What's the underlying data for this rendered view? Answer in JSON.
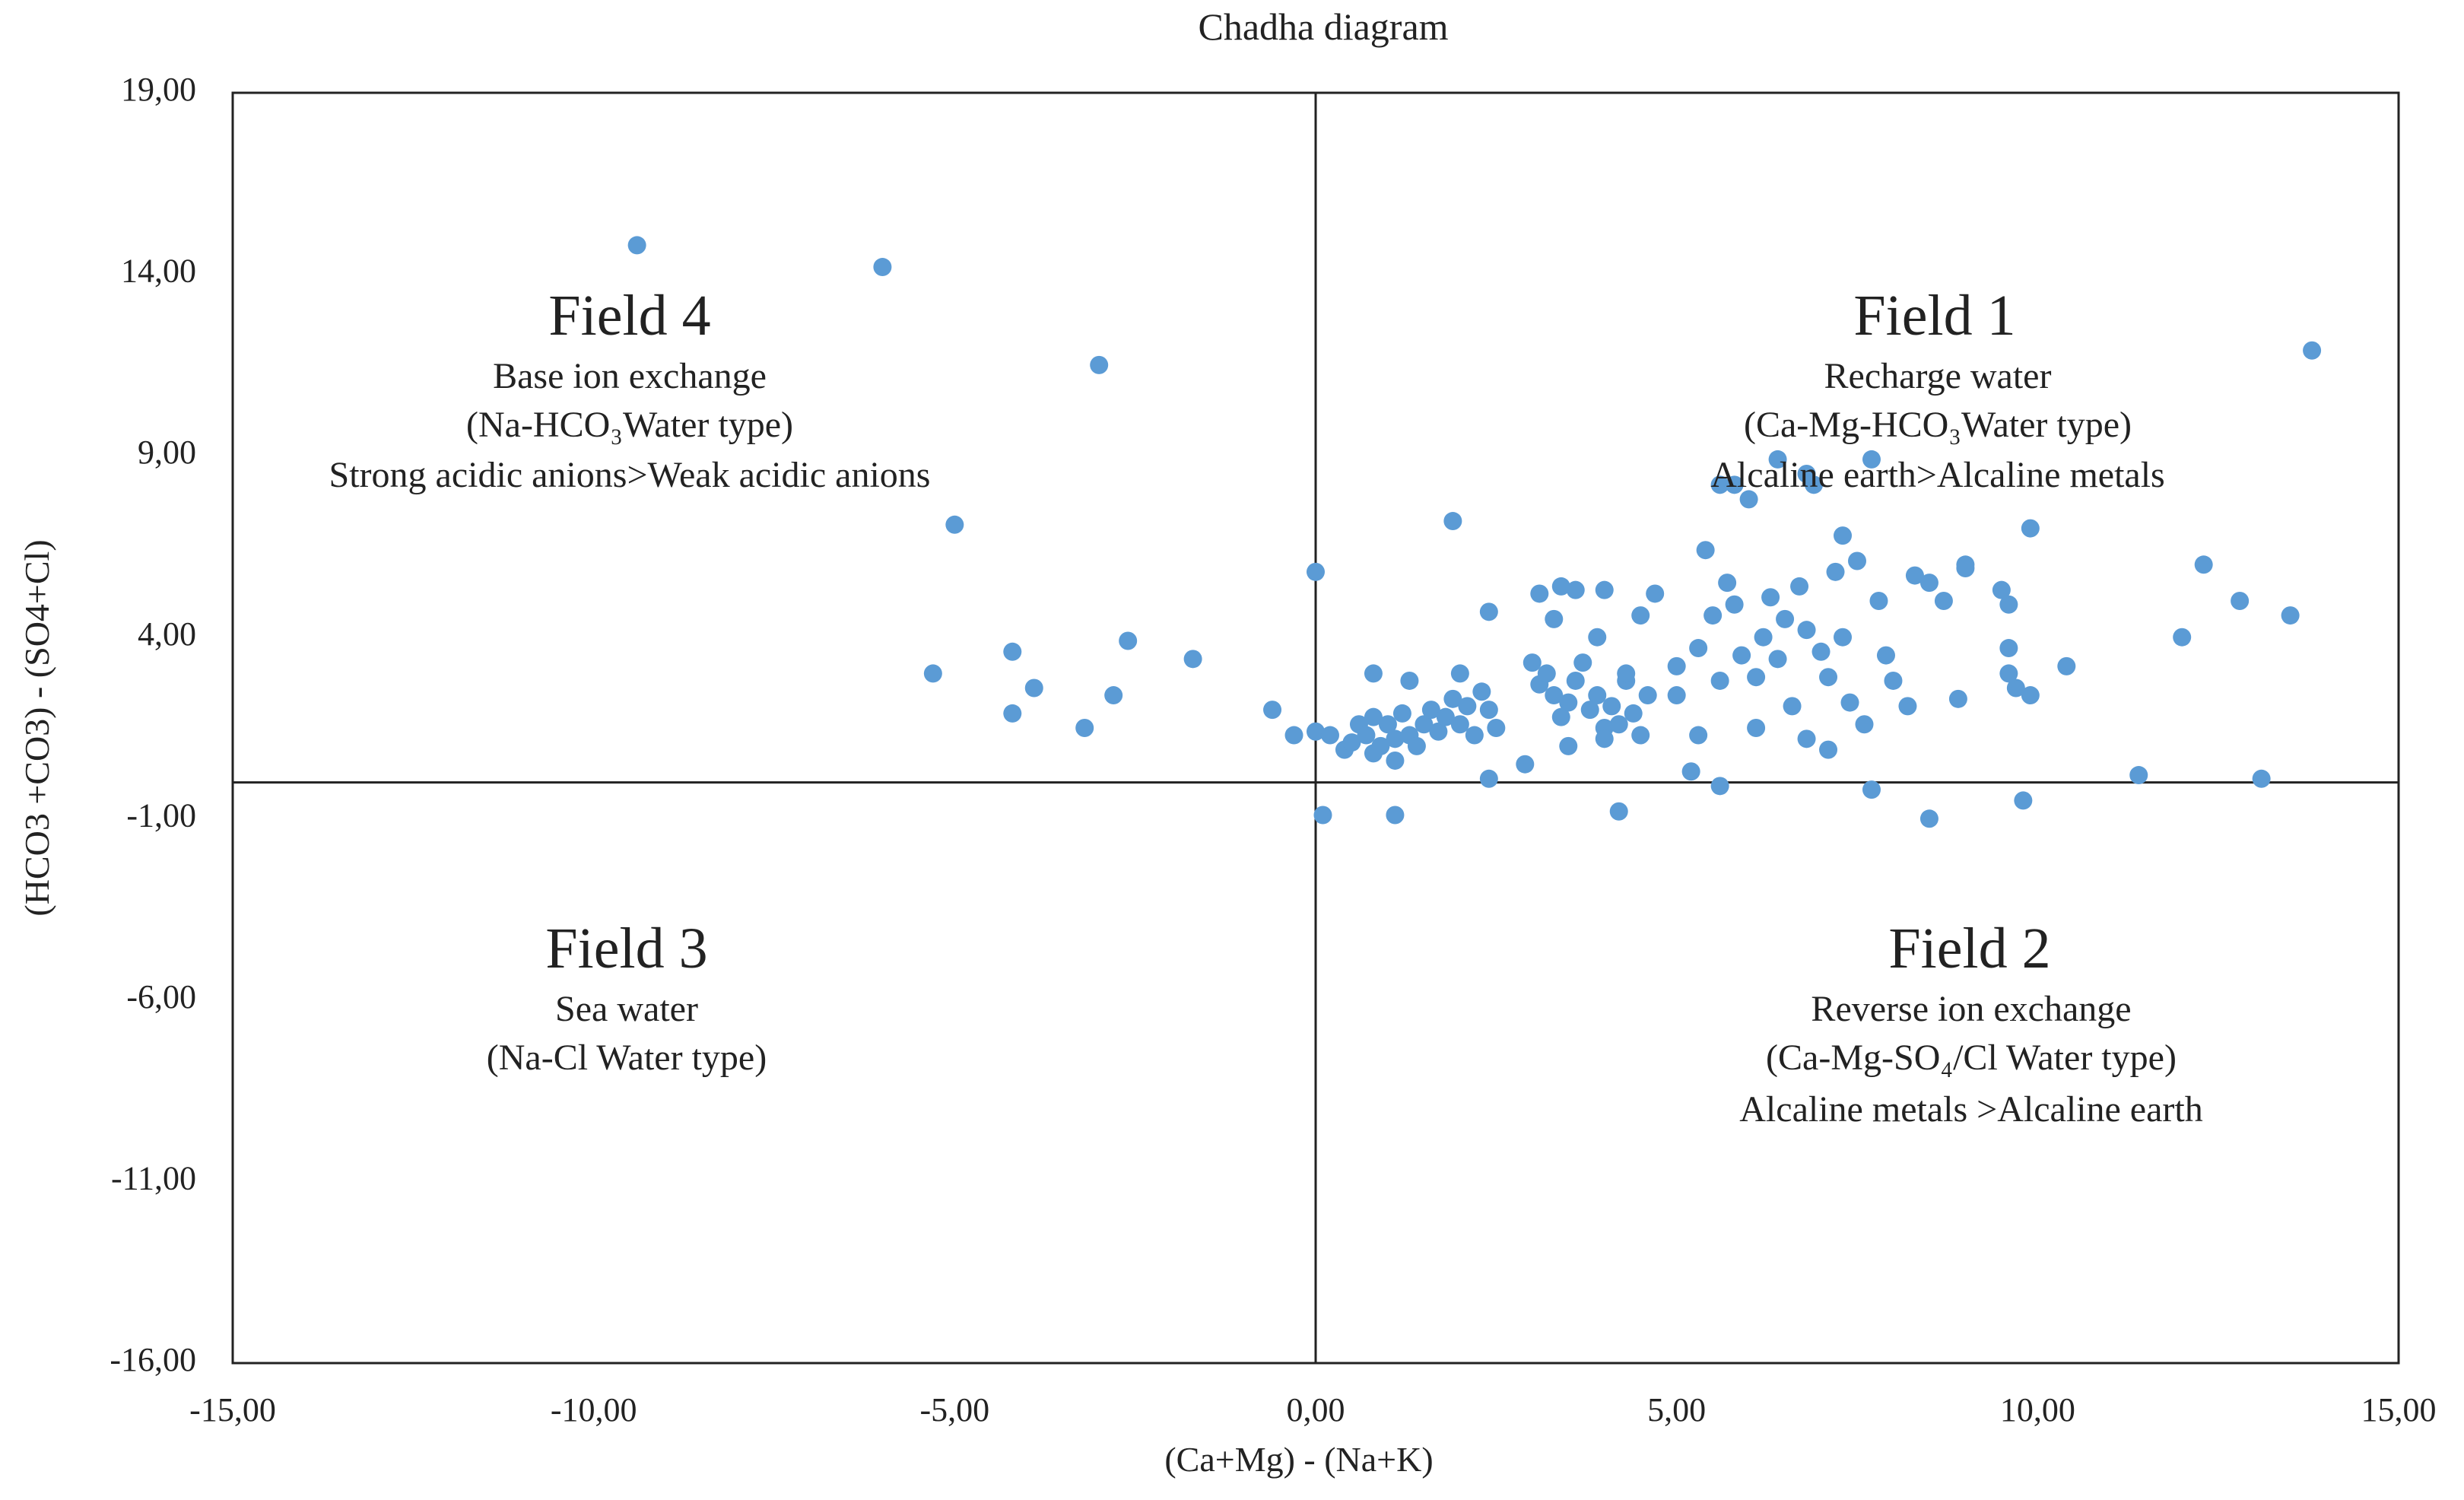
{
  "chart_data": {
    "type": "scatter",
    "title": "Chadha diagram",
    "xlabel": "(Ca+Mg)  - (Na+K)",
    "ylabel": "(HCO3 +CO3)  - (SO4+Cl)",
    "xlim": [
      -15,
      15
    ],
    "ylim": [
      -16,
      19
    ],
    "x_ticks": [
      -15,
      -10,
      -5,
      0,
      5,
      10,
      15
    ],
    "x_tick_labels": [
      "-15,00",
      "-10,00",
      "-5,00",
      "0,00",
      "5,00",
      "10,00",
      "15,00"
    ],
    "y_ticks": [
      19,
      14,
      9,
      4,
      -1,
      -6,
      -11,
      -16
    ],
    "y_tick_labels": [
      "19,00",
      "14,00",
      "9,00",
      "4,00",
      "-1,00",
      "-6,00",
      "-11,00",
      "-16,00"
    ],
    "grid": false,
    "series_color": "#5B9BD5",
    "reference_lines": {
      "x": 0,
      "y": 0
    },
    "fields": [
      {
        "name": "Field 4",
        "lines": [
          "Base  ion  exchange",
          "(Na-HCO₃Water type)",
          "Strong  acidic  anions>Weak  acidic  anions"
        ]
      },
      {
        "name": "Field 1",
        "lines": [
          "Recharge  water",
          "(Ca-Mg-HCO₃Water type)",
          "Alcaline  earth>Alcaline  metals"
        ]
      },
      {
        "name": "Field 3",
        "lines": [
          "Sea water",
          "(Na-Cl Water type)"
        ]
      },
      {
        "name": "Field 2",
        "lines": [
          "Reverse  ion  exchange",
          "(Ca-Mg-SO₄/Cl Water type)",
          "Alcaline  metals  >Alcaline  earth"
        ]
      }
    ],
    "points": [
      [
        -9.4,
        14.8
      ],
      [
        -6.0,
        14.2
      ],
      [
        -3.0,
        11.5
      ],
      [
        -5.0,
        7.1
      ],
      [
        -5.3,
        3.0
      ],
      [
        -4.2,
        3.6
      ],
      [
        -4.2,
        1.9
      ],
      [
        -3.9,
        2.6
      ],
      [
        -3.2,
        1.5
      ],
      [
        -2.8,
        2.4
      ],
      [
        -2.6,
        3.9
      ],
      [
        -1.7,
        3.4
      ],
      [
        13.8,
        11.9
      ],
      [
        -0.0,
        5.8
      ],
      [
        -0.6,
        2.0
      ],
      [
        -0.3,
        1.3
      ],
      [
        0.0,
        1.4
      ],
      [
        0.2,
        1.3
      ],
      [
        0.4,
        0.9
      ],
      [
        0.5,
        1.1
      ],
      [
        0.6,
        1.6
      ],
      [
        0.7,
        1.3
      ],
      [
        0.8,
        0.8
      ],
      [
        0.8,
        1.8
      ],
      [
        0.9,
        1.0
      ],
      [
        1.0,
        1.6
      ],
      [
        1.1,
        1.2
      ],
      [
        1.1,
        0.6
      ],
      [
        1.2,
        1.9
      ],
      [
        1.3,
        1.3
      ],
      [
        1.4,
        1.0
      ],
      [
        1.5,
        1.6
      ],
      [
        1.6,
        2.0
      ],
      [
        1.7,
        1.4
      ],
      [
        1.8,
        1.8
      ],
      [
        1.9,
        2.3
      ],
      [
        2.0,
        1.6
      ],
      [
        2.1,
        2.1
      ],
      [
        2.2,
        1.3
      ],
      [
        2.3,
        2.5
      ],
      [
        2.4,
        2.0
      ],
      [
        2.5,
        1.5
      ],
      [
        0.1,
        -0.9
      ],
      [
        1.1,
        -0.9
      ],
      [
        2.4,
        0.1
      ],
      [
        0.8,
        3.0
      ],
      [
        1.3,
        2.8
      ],
      [
        2.0,
        3.0
      ],
      [
        1.9,
        7.2
      ],
      [
        2.4,
        4.7
      ],
      [
        3.0,
        3.3
      ],
      [
        3.1,
        2.7
      ],
      [
        3.2,
        3.0
      ],
      [
        3.3,
        2.4
      ],
      [
        3.4,
        1.8
      ],
      [
        3.5,
        2.2
      ],
      [
        3.6,
        2.8
      ],
      [
        3.7,
        3.3
      ],
      [
        3.8,
        2.0
      ],
      [
        3.9,
        2.4
      ],
      [
        4.0,
        1.5
      ],
      [
        4.1,
        2.1
      ],
      [
        4.2,
        1.6
      ],
      [
        4.3,
        2.8
      ],
      [
        4.4,
        1.9
      ],
      [
        4.5,
        1.3
      ],
      [
        4.6,
        2.4
      ],
      [
        3.1,
        5.2
      ],
      [
        3.4,
        5.4
      ],
      [
        3.6,
        5.3
      ],
      [
        3.3,
        4.5
      ],
      [
        3.9,
        4.0
      ],
      [
        4.0,
        5.3
      ],
      [
        4.5,
        4.6
      ],
      [
        4.7,
        5.2
      ],
      [
        4.3,
        3.0
      ],
      [
        2.9,
        0.5
      ],
      [
        3.5,
        1.0
      ],
      [
        4.0,
        1.2
      ],
      [
        4.2,
        -0.8
      ],
      [
        5.0,
        3.2
      ],
      [
        5.0,
        2.4
      ],
      [
        5.2,
        0.3
      ],
      [
        5.3,
        3.7
      ],
      [
        5.4,
        6.4
      ],
      [
        5.5,
        4.6
      ],
      [
        5.6,
        2.8
      ],
      [
        5.7,
        5.5
      ],
      [
        5.8,
        4.9
      ],
      [
        5.9,
        3.5
      ],
      [
        6.0,
        7.8
      ],
      [
        6.1,
        2.9
      ],
      [
        6.2,
        4.0
      ],
      [
        6.3,
        5.1
      ],
      [
        6.4,
        3.4
      ],
      [
        6.5,
        4.5
      ],
      [
        6.6,
        2.1
      ],
      [
        6.7,
        5.4
      ],
      [
        6.8,
        4.2
      ],
      [
        6.9,
        8.2
      ],
      [
        7.0,
        3.6
      ],
      [
        7.1,
        2.9
      ],
      [
        7.2,
        5.8
      ],
      [
        7.3,
        4.0
      ],
      [
        7.4,
        2.2
      ],
      [
        7.5,
        6.1
      ],
      [
        7.6,
        1.6
      ],
      [
        7.7,
        8.9
      ],
      [
        7.8,
        5.0
      ],
      [
        7.9,
        3.5
      ],
      [
        5.6,
        8.2
      ],
      [
        6.4,
        8.9
      ],
      [
        6.8,
        8.5
      ],
      [
        7.3,
        6.8
      ],
      [
        5.3,
        1.3
      ],
      [
        6.1,
        1.5
      ],
      [
        6.8,
        1.2
      ],
      [
        7.7,
        -0.2
      ],
      [
        5.6,
        -0.1
      ],
      [
        5.8,
        8.2
      ],
      [
        8.0,
        2.8
      ],
      [
        8.2,
        2.1
      ],
      [
        8.3,
        5.7
      ],
      [
        8.5,
        5.5
      ],
      [
        8.7,
        5.0
      ],
      [
        8.9,
        2.3
      ],
      [
        9.0,
        6.0
      ],
      [
        9.5,
        5.3
      ],
      [
        9.6,
        4.9
      ],
      [
        9.6,
        3.7
      ],
      [
        9.6,
        3.0
      ],
      [
        9.7,
        2.6
      ],
      [
        9.9,
        2.4
      ],
      [
        9.9,
        7.0
      ],
      [
        10.4,
        3.2
      ],
      [
        9.8,
        -0.5
      ],
      [
        8.5,
        -1.0
      ],
      [
        11.4,
        0.2
      ],
      [
        12.0,
        4.0
      ],
      [
        12.3,
        6.0
      ],
      [
        12.8,
        5.0
      ],
      [
        13.1,
        0.1
      ],
      [
        13.5,
        4.6
      ],
      [
        9.0,
        5.9
      ],
      [
        7.1,
        0.9
      ]
    ]
  }
}
